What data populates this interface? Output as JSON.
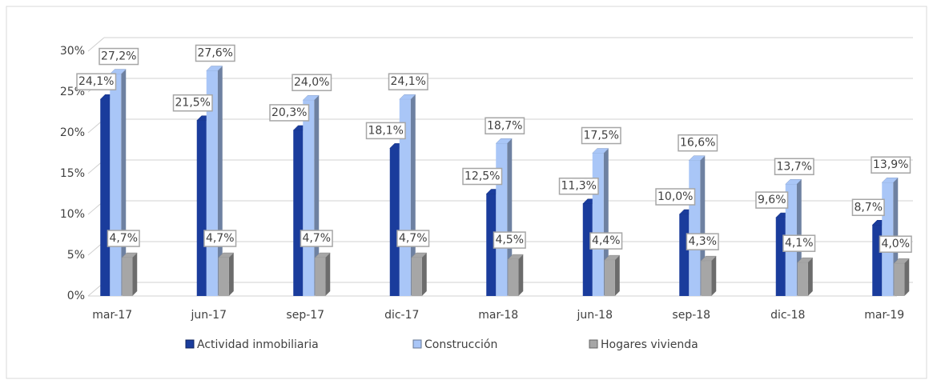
{
  "chart_data": {
    "type": "bar3d",
    "categories": [
      "mar-17",
      "jun-17",
      "sep-17",
      "dic-17",
      "mar-18",
      "jun-18",
      "sep-18",
      "dic-18",
      "mar-19"
    ],
    "series": [
      {
        "name": "Actividad inmobiliaria",
        "color": "#1a3c9c",
        "values": [
          24.1,
          21.5,
          20.3,
          18.1,
          12.5,
          11.3,
          10.0,
          9.6,
          8.7
        ],
        "value_labels": [
          "24,1%",
          "21,5%",
          "20,3%",
          "18,1%",
          "12,5%",
          "11,3%",
          "10,0%",
          "9,6%",
          "8,7%"
        ]
      },
      {
        "name": "Construcción",
        "color": "#a9c6f7",
        "values": [
          27.2,
          27.6,
          24.0,
          24.1,
          18.7,
          17.5,
          16.6,
          13.7,
          13.9
        ],
        "value_labels": [
          "27,2%",
          "27,6%",
          "24,0%",
          "24,1%",
          "18,7%",
          "17,5%",
          "16,6%",
          "13,7%",
          "13,9%"
        ]
      },
      {
        "name": "Hogares vivienda",
        "color": "#a6a6a6",
        "values": [
          4.7,
          4.7,
          4.7,
          4.7,
          4.5,
          4.4,
          4.3,
          4.1,
          4.0
        ],
        "value_labels": [
          "4,7%",
          "4,7%",
          "4,7%",
          "4,7%",
          "4,5%",
          "4,4%",
          "4,3%",
          "4,1%",
          "4,0%"
        ]
      }
    ],
    "ylim": [
      0,
      30
    ],
    "yticks": [
      {
        "value": 0,
        "label": "0%"
      },
      {
        "value": 5,
        "label": "5%"
      },
      {
        "value": 10,
        "label": "10%"
      },
      {
        "value": 15,
        "label": "15%"
      },
      {
        "value": 20,
        "label": "20%"
      },
      {
        "value": 25,
        "label": "25%"
      },
      {
        "value": 30,
        "label": "30%"
      }
    ],
    "grid": true,
    "legend": "bottom"
  }
}
